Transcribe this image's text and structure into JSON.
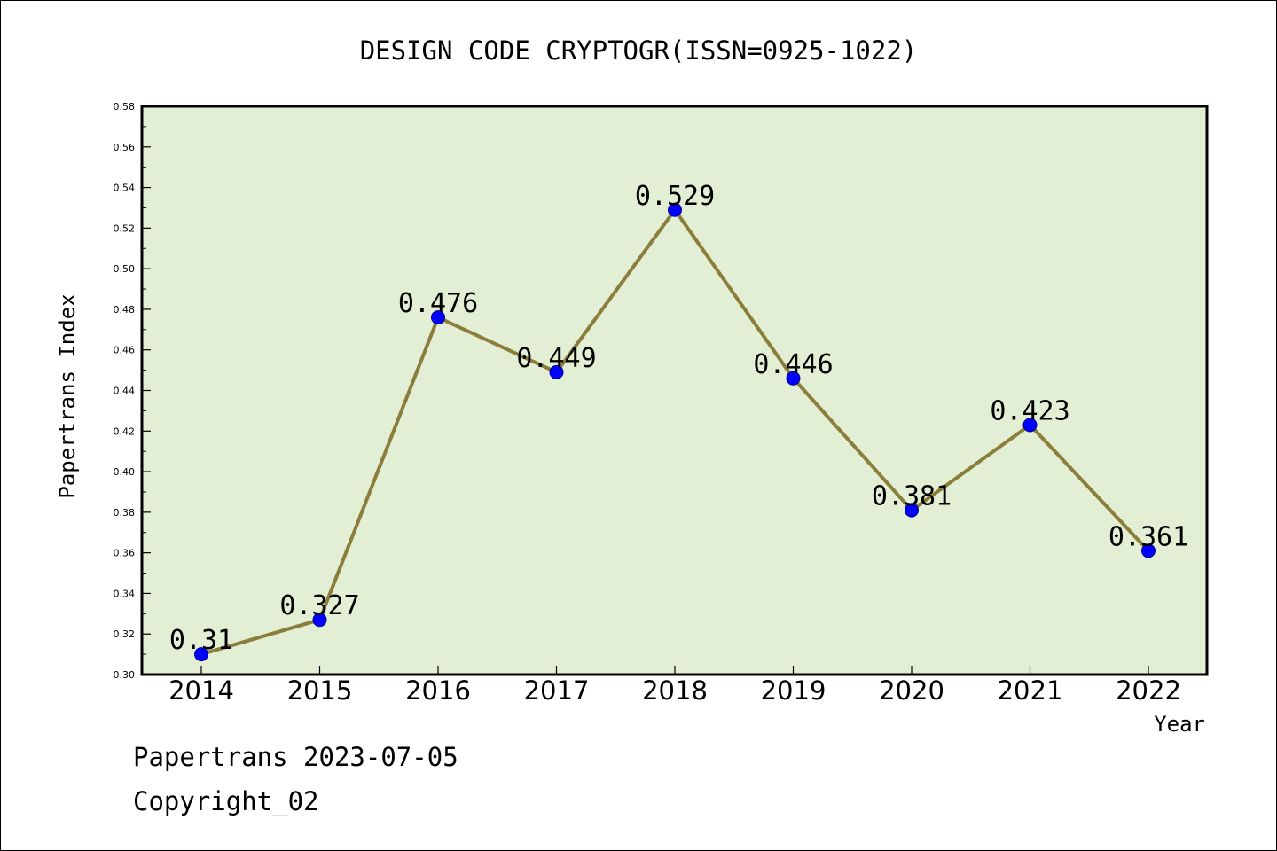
{
  "chart_data": {
    "type": "line",
    "title": "DESIGN CODE CRYPTOGR(ISSN=0925-1022)",
    "xlabel": "Year",
    "ylabel": "Papertrans Index",
    "categories": [
      "2014",
      "2015",
      "2016",
      "2017",
      "2018",
      "2019",
      "2020",
      "2021",
      "2022"
    ],
    "values": [
      0.31,
      0.327,
      0.476,
      0.449,
      0.529,
      0.446,
      0.381,
      0.423,
      0.361
    ],
    "data_labels": [
      "0.31",
      "0.327",
      "0.476",
      "0.449",
      "0.529",
      "0.446",
      "0.381",
      "0.423",
      "0.361"
    ],
    "ylim": [
      0.3,
      0.58
    ],
    "yticks": [
      "0.30",
      "0.32",
      "0.34",
      "0.36",
      "0.38",
      "0.40",
      "0.42",
      "0.44",
      "0.46",
      "0.48",
      "0.50",
      "0.52",
      "0.54",
      "0.56",
      "0.58"
    ],
    "grid": false,
    "colors": {
      "plot_background": "#e2efd5",
      "line": "#8b7d3a",
      "marker": "#0000ff"
    }
  },
  "footer": {
    "line1": "Papertrans 2023-07-05",
    "line2": "Copyright_02"
  }
}
